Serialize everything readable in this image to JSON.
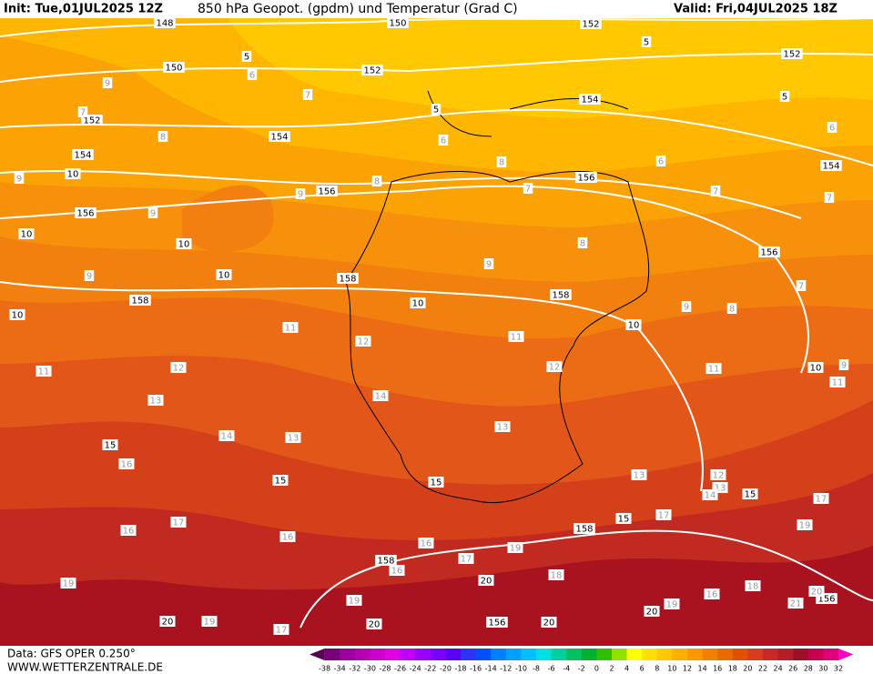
{
  "header": {
    "init": "Init: Tue,01JUL2025 12Z",
    "title": "850 hPa Geopot. (gpdm) und Temperatur (Grad C)",
    "valid": "Valid: Fri,04JUL2025 18Z"
  },
  "footer": {
    "data_source": "Data: GFS OPER 0.250°",
    "website": "WWW.WETTERZENTRALE.DE"
  },
  "colorbar": {
    "ticks": [
      "-38",
      "-34",
      "-32",
      "-30",
      "-28",
      "-26",
      "-24",
      "-22",
      "-20",
      "-18",
      "-16",
      "-14",
      "-12",
      "-10",
      "-8",
      "-6",
      "-4",
      "-2",
      "0",
      "2",
      "4",
      "6",
      "8",
      "10",
      "12",
      "14",
      "16",
      "18",
      "20",
      "22",
      "24",
      "26",
      "28",
      "30",
      "32"
    ],
    "colors": [
      "#5a0050",
      "#7a007a",
      "#9a009a",
      "#b400b4",
      "#cc00cc",
      "#e000e0",
      "#c000ff",
      "#9a00ff",
      "#7a00ff",
      "#5a00ff",
      "#3030ff",
      "#0050ff",
      "#0080ff",
      "#00a0ff",
      "#00c0ff",
      "#00e0e0",
      "#00d0a0",
      "#00c060",
      "#00b030",
      "#30c000",
      "#90e000",
      "#ffff00",
      "#ffe000",
      "#ffc800",
      "#ffb000",
      "#ff9800",
      "#f08000",
      "#e86a00",
      "#e05000",
      "#d83c20",
      "#c82828",
      "#b41e28",
      "#a00f28",
      "#c80050",
      "#e0007a",
      "#ff00c8"
    ]
  },
  "contour_labels": [
    "148",
    "150",
    "152",
    "150",
    "152",
    "152",
    "152",
    "154",
    "154",
    "154",
    "154",
    "156",
    "156",
    "156",
    "156",
    "158",
    "158",
    "158",
    "158",
    "158",
    "156",
    "156",
    "10",
    "10",
    "10",
    "10",
    "10",
    "10",
    "10",
    "10",
    "15",
    "15",
    "15",
    "15",
    "15",
    "20",
    "20",
    "20",
    "20",
    "20",
    "5",
    "5",
    "5",
    "5",
    "9",
    "6",
    "7",
    "7",
    "8",
    "6",
    "6",
    "8",
    "6",
    "9",
    "8",
    "7",
    "7",
    "7",
    "9",
    "9",
    "8",
    "9",
    "9",
    "7",
    "9",
    "8",
    "11",
    "11",
    "12",
    "11",
    "12",
    "12",
    "11",
    "9",
    "11",
    "13",
    "14",
    "14",
    "13",
    "13",
    "16",
    "13",
    "12",
    "13",
    "14",
    "17",
    "17",
    "17",
    "16",
    "16",
    "19",
    "16",
    "17",
    "19",
    "18",
    "16",
    "18",
    "16",
    "19",
    "19",
    "19",
    "21",
    "19",
    "17",
    "20"
  ]
}
